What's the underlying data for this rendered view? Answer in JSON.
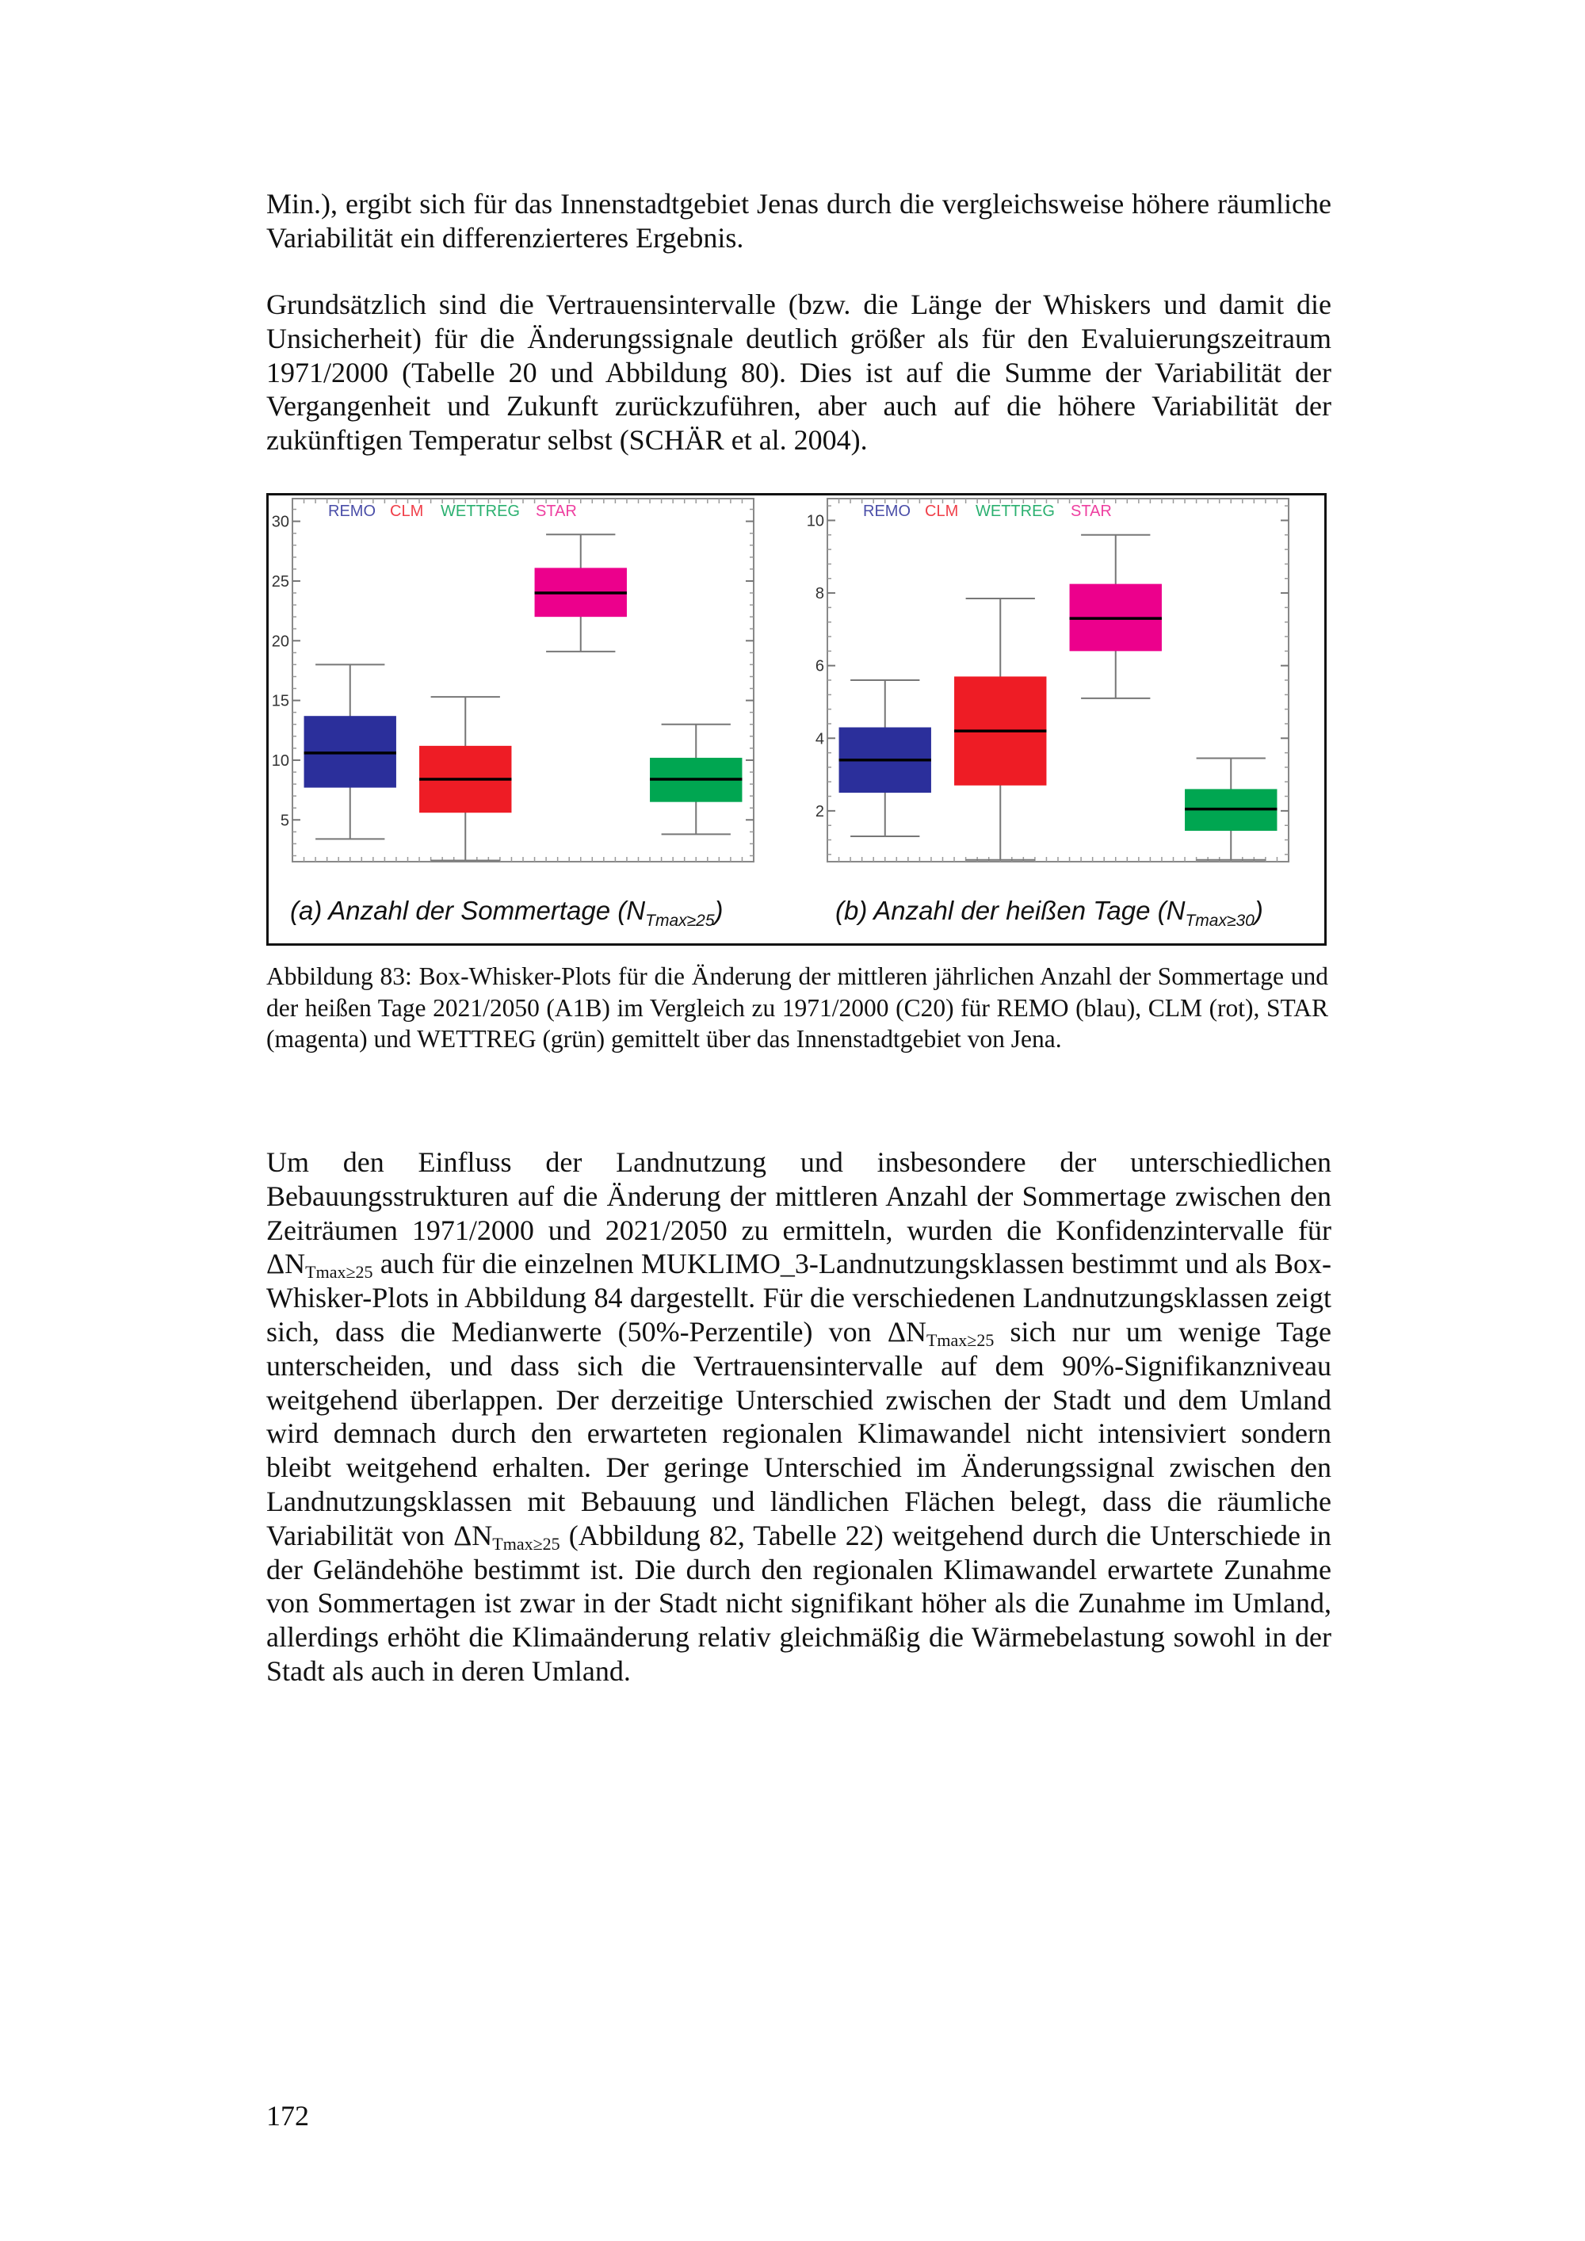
{
  "paragraphs": {
    "p1": "Min.), ergibt sich für das Innenstadtgebiet Jenas durch die vergleichsweise höhere räumliche Variabilität ein differenzierteres Ergebnis.",
    "p2": "Grundsätzlich sind die Vertrauensintervalle (bzw. die Länge der Whiskers und damit die Unsicherheit) für die Änderungssignale deutlich größer als für den Evaluierungszeitraum 1971/2000 (Tabelle 20 und Abbildung 80). Dies ist auf die Summe der Variabilität der Vergangenheit und Zukunft zurückzuführen, aber auch auf die höhere Variabilität der zukünftigen Temperatur selbst (SCHÄR et al. 2004).",
    "p3": [
      {
        "t": "Um den Einfluss der Landnutzung und insbesondere der unterschiedlichen Bebauungsstrukturen auf die Änderung der mittleren Anzahl der Sommertage zwischen den Zeiträumen 1971/2000 und 2021/2050 zu ermitteln, wurden die Konfidenzintervalle für ΔN"
      },
      {
        "t": "Tmax≥25",
        "sub": true
      },
      {
        "t": " auch für die einzelnen MUKLIMO_3-Landnutzungsklassen bestimmt und als Box-Whisker-Plots in Abbildung 84 dargestellt. Für die verschiedenen Landnutzungsklassen zeigt sich, dass die Medianwerte (50%-Perzentile) von ΔN"
      },
      {
        "t": "Tmax≥25",
        "sub": true
      },
      {
        "t": " sich nur um wenige Tage unterscheiden, und dass sich die Vertrauensintervalle auf dem 90%-Signifikanzniveau weitgehend überlappen. Der derzeitige Unterschied zwischen der Stadt und dem Umland wird demnach durch den erwarteten regionalen Klimawandel nicht intensiviert sondern bleibt weitgehend erhalten. Der geringe Unterschied im Änderungssignal zwischen den Landnutzungsklassen mit Bebauung und ländlichen Flächen belegt, dass die räumliche Variabilität von ΔN"
      },
      {
        "t": "Tmax≥25",
        "sub": true
      },
      {
        "t": " (Abbildung 82, Tabelle 22) weitgehend durch die Unterschiede in der Geländehöhe bestimmt ist. Die durch den regionalen Klimawandel erwartete Zunahme von Sommertagen ist zwar in der Stadt nicht signifikant höher als die Zunahme im Umland, allerdings erhöht die Klimaänderung relativ gleichmäßig die Wärmebelastung sowohl in der Stadt als auch in deren Umland."
      }
    ]
  },
  "figure": {
    "label_a": {
      "main": "(a) Anzahl der Sommertage (N",
      "sub": "Tmax≥25",
      "end": ")"
    },
    "label_b": {
      "main": "(b) Anzahl der heißen Tage (N",
      "sub": "Tmax≥30",
      "end": ")"
    },
    "caption": "Abbildung 83: Box-Whisker-Plots für die Änderung der mittleren jährlichen Anzahl der Sommertage und der heißen Tage 2021/2050 (A1B) im Vergleich zu 1971/2000 (C20) für REMO (blau), CLM (rot), STAR (magenta) und WETTREG (grün) gemittelt über das Innenstadtgebiet von Jena."
  },
  "page_number": "172",
  "colors": {
    "REMO": "#2b2f9b",
    "CLM": "#ee1c25",
    "STAR": "#ec008c",
    "WETTREG": "#00a651"
  },
  "chart_data": [
    {
      "type": "box",
      "title": "",
      "legend": [
        "REMO",
        "CLM",
        "WETTREG",
        "STAR"
      ],
      "legend_placement": "top-left",
      "categories": [
        "REMO",
        "CLM",
        "STAR",
        "WETTREG"
      ],
      "yticks": [
        5,
        10,
        15,
        20,
        25,
        30
      ],
      "ylim": [
        1.5,
        31.9
      ],
      "grid": false,
      "boxes": [
        {
          "name": "REMO",
          "whisker_low": 3.4,
          "q1": 7.7,
          "median": 10.6,
          "q3": 13.7,
          "whisker_high": 18.0
        },
        {
          "name": "CLM",
          "whisker_low": 1.6,
          "q1": 5.6,
          "median": 8.4,
          "q3": 11.2,
          "whisker_high": 15.3
        },
        {
          "name": "STAR",
          "whisker_low": 19.1,
          "q1": 22.0,
          "median": 24.0,
          "q3": 26.1,
          "whisker_high": 28.9
        },
        {
          "name": "WETTREG",
          "whisker_low": 3.8,
          "q1": 6.5,
          "median": 8.4,
          "q3": 10.2,
          "whisker_high": 13.0
        }
      ]
    },
    {
      "type": "box",
      "title": "",
      "legend": [
        "REMO",
        "CLM",
        "WETTREG",
        "STAR"
      ],
      "legend_placement": "top-left",
      "categories": [
        "REMO",
        "CLM",
        "STAR",
        "WETTREG"
      ],
      "yticks": [
        2,
        4,
        6,
        8,
        10
      ],
      "ylim": [
        0.6,
        10.6
      ],
      "grid": false,
      "boxes": [
        {
          "name": "REMO",
          "whisker_low": 1.3,
          "q1": 2.5,
          "median": 3.4,
          "q3": 4.3,
          "whisker_high": 5.6
        },
        {
          "name": "CLM",
          "whisker_low": 0.65,
          "q1": 2.7,
          "median": 4.2,
          "q3": 5.7,
          "whisker_high": 7.85
        },
        {
          "name": "STAR",
          "whisker_low": 5.1,
          "q1": 6.4,
          "median": 7.3,
          "q3": 8.25,
          "whisker_high": 9.6
        },
        {
          "name": "WETTREG",
          "whisker_low": 0.65,
          "q1": 1.45,
          "median": 2.05,
          "q3": 2.6,
          "whisker_high": 3.45
        }
      ]
    }
  ]
}
